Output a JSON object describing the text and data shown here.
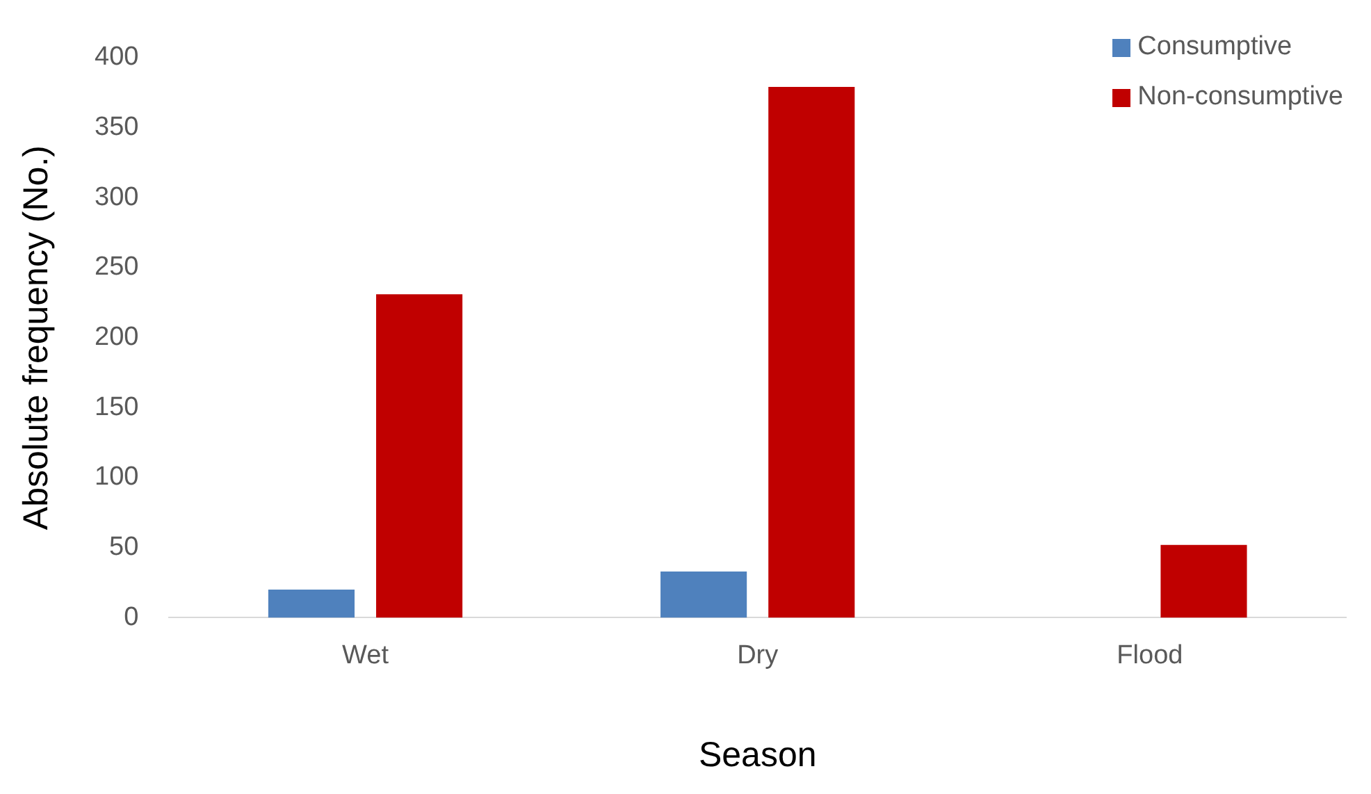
{
  "chart_data": {
    "type": "bar",
    "xlabel": "Season",
    "ylabel": "Absolute frequency (No.)",
    "categories": [
      "Wet",
      "Dry",
      "Flood"
    ],
    "series": [
      {
        "name": "Consumptive",
        "color": "#4f81bd",
        "values": [
          20,
          33,
          0
        ]
      },
      {
        "name": "Non-consumptive",
        "color": "#c00000",
        "values": [
          231,
          379,
          52
        ]
      }
    ],
    "ylim": [
      0,
      400
    ],
    "yticks": [
      0,
      50,
      100,
      150,
      200,
      250,
      300,
      350,
      400
    ],
    "grid": false,
    "legend": "top right"
  }
}
